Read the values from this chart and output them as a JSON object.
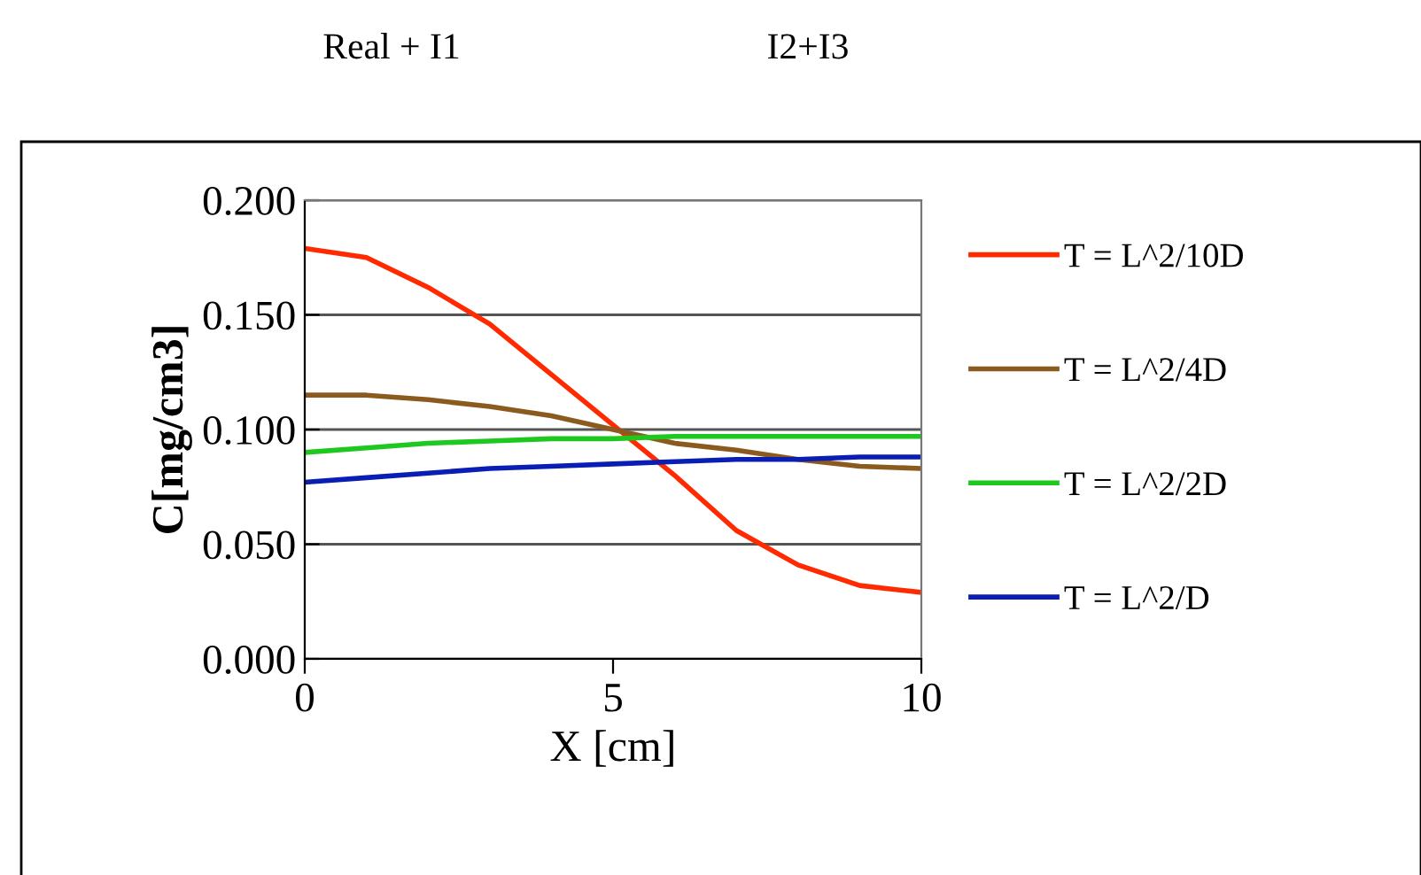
{
  "chart_data": {
    "type": "line",
    "xlabel": "X [cm]",
    "ylabel": "C[mg/cm3]",
    "annotations": [
      "Real + I1",
      "I2+I3"
    ],
    "x": [
      0,
      1,
      2,
      3,
      4,
      5,
      6,
      7,
      8,
      9,
      10
    ],
    "series": [
      {
        "name": "T = L^2/10D",
        "color": "#ff2a00",
        "values": [
          0.179,
          0.175,
          0.162,
          0.146,
          0.124,
          0.102,
          0.08,
          0.056,
          0.041,
          0.032,
          0.029
        ]
      },
      {
        "name": "T = L^2/4D",
        "color": "#8b5a1e",
        "values": [
          0.115,
          0.115,
          0.113,
          0.11,
          0.106,
          0.1,
          0.094,
          0.091,
          0.087,
          0.084,
          0.083
        ]
      },
      {
        "name": "T = L^2/2D",
        "color": "#1ec81e",
        "values": [
          0.09,
          0.092,
          0.094,
          0.095,
          0.096,
          0.096,
          0.097,
          0.097,
          0.097,
          0.097,
          0.097
        ]
      },
      {
        "name": "T = L^2/D",
        "color": "#0a1eb4",
        "values": [
          0.077,
          0.079,
          0.081,
          0.083,
          0.084,
          0.085,
          0.086,
          0.087,
          0.087,
          0.088,
          0.088
        ]
      }
    ],
    "xlim": [
      0,
      10
    ],
    "xticks": [
      0,
      5,
      10
    ],
    "ylim": [
      0,
      0.2
    ],
    "yticks": [
      {
        "value": 0,
        "label": "0.000"
      },
      {
        "value": 0.05,
        "label": "0.050"
      },
      {
        "value": 0.1,
        "label": "0.100"
      },
      {
        "value": 0.15,
        "label": "0.150"
      },
      {
        "value": 0.2,
        "label": "0.200"
      }
    ],
    "grid": "y",
    "legend": "right",
    "marker": "none",
    "line_style": "solid"
  }
}
